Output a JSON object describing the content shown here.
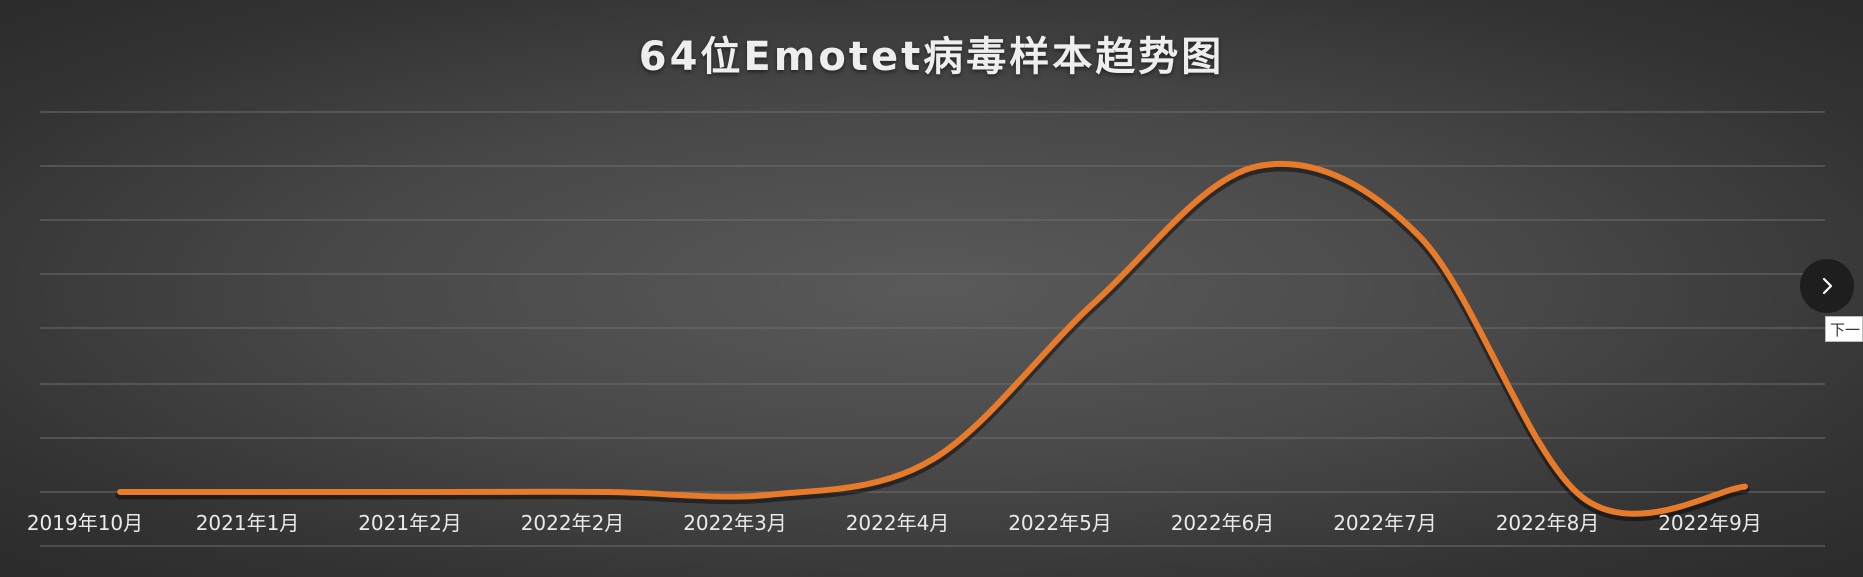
{
  "chart_data": {
    "type": "line",
    "title": "64位Emotet病毒样本趋势图",
    "xlabel": "",
    "ylabel": "",
    "categories": [
      "2019年10月",
      "2021年1月",
      "2021年2月",
      "2022年2月",
      "2022年3月",
      "2022年4月",
      "2022年5月",
      "2022年6月",
      "2022年7月",
      "2022年8月",
      "2022年9月"
    ],
    "series": [
      {
        "values": [
          0,
          0,
          0,
          0,
          -0.05,
          0.6,
          3.5,
          6,
          4.7,
          -0.1,
          0.1
        ]
      }
    ],
    "ylim": [
      0,
      7
    ],
    "grid": true,
    "y_tick_labels_shown": false,
    "smooth": true,
    "line_color": "#e87b2a"
  },
  "nav": {
    "next_icon": "chevron-right-icon",
    "tooltip": "下一"
  }
}
